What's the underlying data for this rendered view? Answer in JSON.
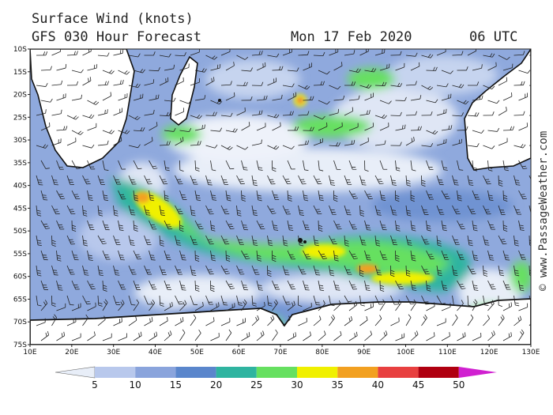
{
  "header": {
    "title": "Surface Wind (knots)",
    "subtitle": "GFS 030 Hour Forecast",
    "datetime": "Mon 17 Feb 2020",
    "runtime": "06 UTC"
  },
  "credit": "© www.PassageWeather.com",
  "map": {
    "lon_labels": [
      "10E",
      "20E",
      "30E",
      "40E",
      "50E",
      "60E",
      "70E",
      "80E",
      "90E",
      "100E",
      "110E",
      "120E",
      "130E"
    ],
    "lat_labels": [
      "10S",
      "15S",
      "20S",
      "25S",
      "30S",
      "35S",
      "40S",
      "45S",
      "50S",
      "55S",
      "60S",
      "65S",
      "70S",
      "75S"
    ],
    "lon_range": [
      10,
      130
    ],
    "lat_range": [
      -10,
      -75
    ]
  },
  "colorbar": {
    "labels": [
      "5",
      "10",
      "15",
      "20",
      "25",
      "30",
      "35",
      "40",
      "45",
      "50"
    ],
    "colors": [
      "#e8eef8",
      "#b8c8ec",
      "#8aa4dc",
      "#5a86cc",
      "#2fb4a0",
      "#66e060",
      "#f0f000",
      "#f2a020",
      "#e84040",
      "#b00010",
      "#d020d0"
    ]
  },
  "colors": {
    "land": "#ffffff",
    "ocean_low": "#e8eef8",
    "coast": "#111111"
  }
}
